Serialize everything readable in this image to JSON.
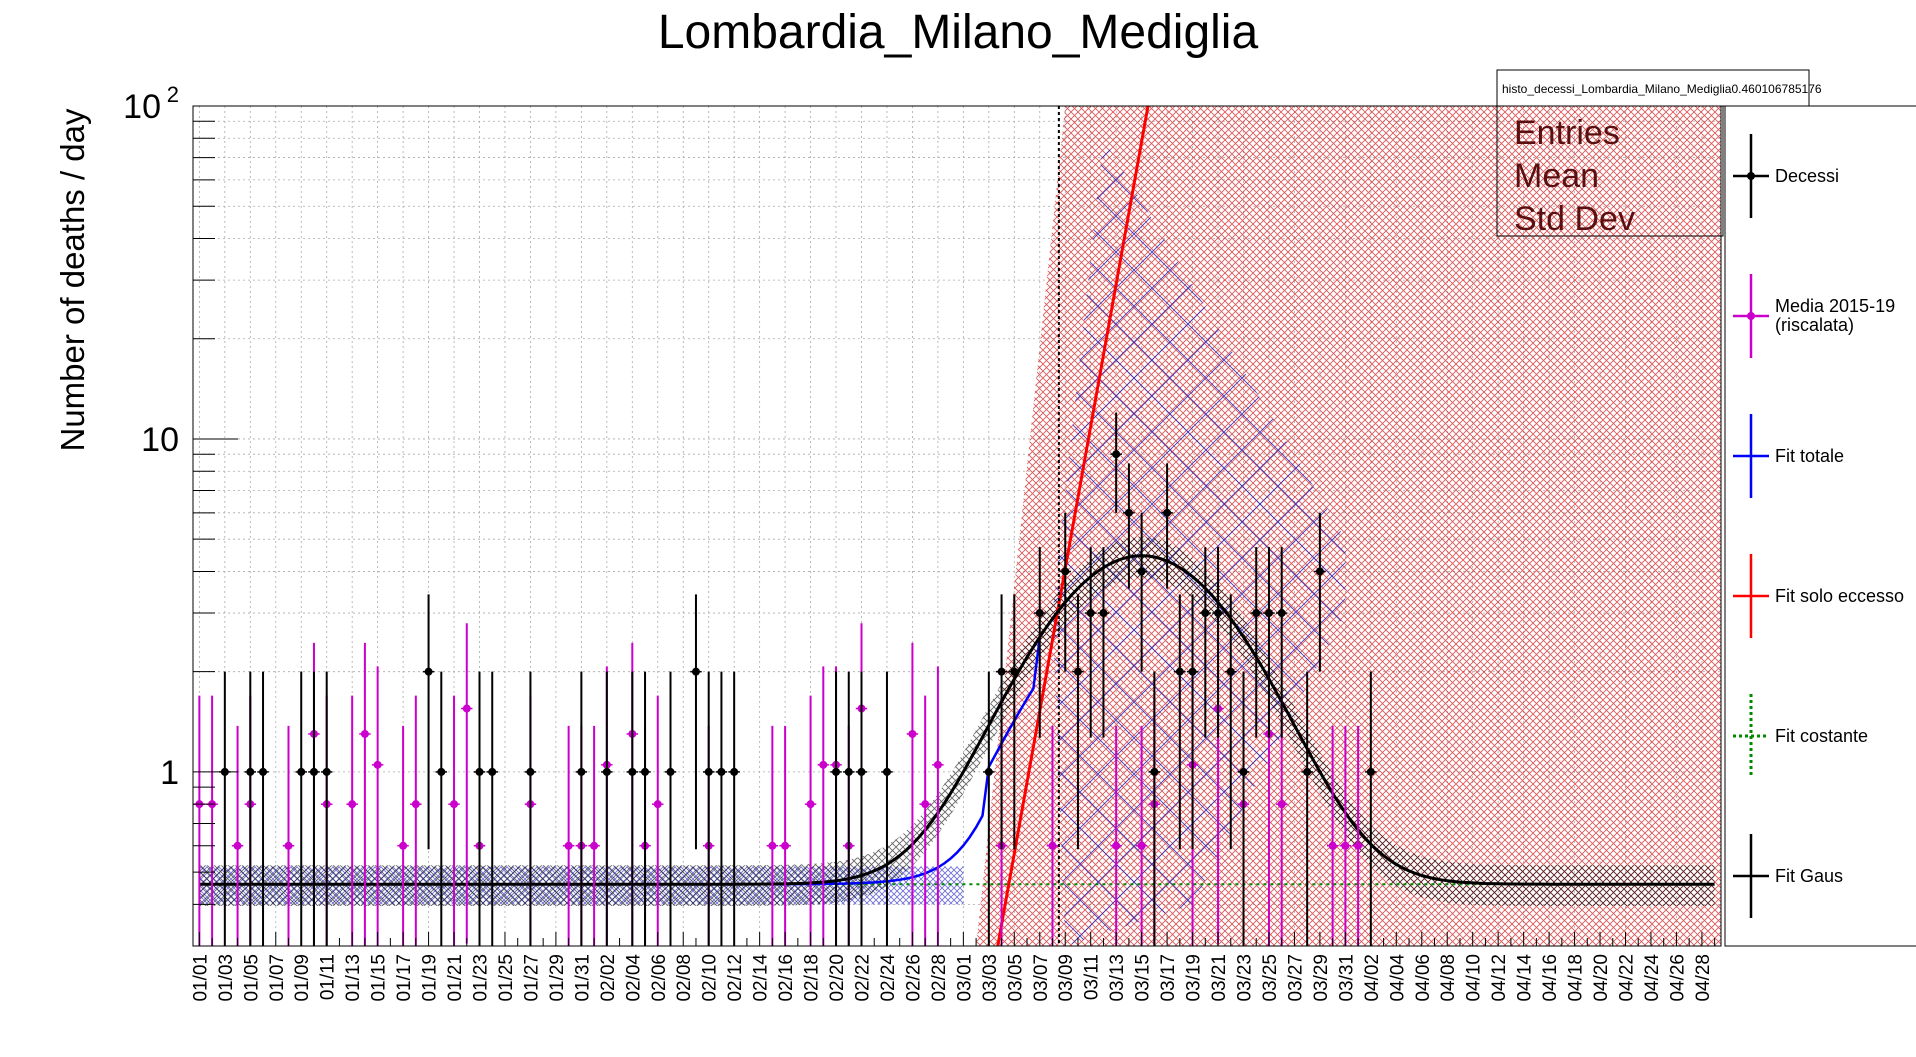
{
  "chart_data": {
    "type": "scatter",
    "title": "Lombardia_Milano_Mediglia",
    "ylabel": "Number of deaths / day",
    "y_scale": "log",
    "ylim": [
      0.3,
      100
    ],
    "y_ticks": [
      {
        "value": 1,
        "label": "1"
      },
      {
        "value": 10,
        "label": "10"
      },
      {
        "value": 100,
        "label": "10",
        "exp": "2"
      }
    ],
    "grid": true,
    "x_tick_labels": [
      "01/01",
      "01/03",
      "01/05",
      "01/07",
      "01/09",
      "01/11",
      "01/13",
      "01/15",
      "01/17",
      "01/19",
      "01/21",
      "01/23",
      "01/25",
      "01/27",
      "01/29",
      "01/31",
      "02/02",
      "02/04",
      "02/06",
      "02/08",
      "02/10",
      "02/12",
      "02/14",
      "02/16",
      "02/18",
      "02/20",
      "02/22",
      "02/24",
      "02/26",
      "02/28",
      "03/01",
      "03/03",
      "03/05",
      "03/07",
      "03/09",
      "03/11",
      "03/13",
      "03/15",
      "03/17",
      "03/19",
      "03/21",
      "03/23",
      "03/25",
      "03/27",
      "03/29",
      "03/31",
      "04/02",
      "04/04",
      "04/06",
      "04/08",
      "04/10",
      "04/12",
      "04/14",
      "04/16",
      "04/18",
      "04/20",
      "04/22",
      "04/24",
      "04/26",
      "04/28"
    ],
    "x_day_count": 120,
    "vertical_marker_date": "03/09",
    "stats_box": {
      "name": "histo_decessi_Lombardia_Milano_Mediglia0.460106785176",
      "rows": [
        "Entries",
        "Mean",
        "Std Dev"
      ]
    },
    "legend": [
      {
        "label": "Decessi",
        "color": "#000000",
        "style": "point"
      },
      {
        "label": "Media 2015-19 (riscalata)",
        "color": "#cc00cc",
        "style": "point"
      },
      {
        "label": "Fit totale",
        "color": "#0000ff",
        "style": "line"
      },
      {
        "label": "Fit solo eccesso",
        "color": "#ff0000",
        "style": "line"
      },
      {
        "label": "Fit costante",
        "color": "#008800",
        "style": "dashed"
      },
      {
        "label": "Fit Gaus",
        "color": "#000000",
        "style": "line"
      }
    ],
    "series": [
      {
        "name": "Decessi",
        "color": "#000000",
        "points": [
          [
            "01/03",
            1
          ],
          [
            "01/05",
            1
          ],
          [
            "01/06",
            1
          ],
          [
            "01/09",
            1
          ],
          [
            "01/10",
            1
          ],
          [
            "01/11",
            1
          ],
          [
            "01/19",
            2
          ],
          [
            "01/20",
            1
          ],
          [
            "01/23",
            1
          ],
          [
            "01/24",
            1
          ],
          [
            "01/27",
            1
          ],
          [
            "01/31",
            1
          ],
          [
            "02/02",
            1
          ],
          [
            "02/04",
            1
          ],
          [
            "02/05",
            1
          ],
          [
            "02/07",
            1
          ],
          [
            "02/09",
            2
          ],
          [
            "02/10",
            1
          ],
          [
            "02/11",
            1
          ],
          [
            "02/12",
            1
          ],
          [
            "02/20",
            1
          ],
          [
            "02/21",
            1
          ],
          [
            "02/22",
            1
          ],
          [
            "02/24",
            1
          ],
          [
            "03/03",
            1
          ],
          [
            "03/04",
            2
          ],
          [
            "03/05",
            2
          ],
          [
            "03/07",
            3
          ],
          [
            "03/09",
            4
          ],
          [
            "03/10",
            2
          ],
          [
            "03/11",
            3
          ],
          [
            "03/12",
            3
          ],
          [
            "03/13",
            9
          ],
          [
            "03/14",
            6
          ],
          [
            "03/15",
            4
          ],
          [
            "03/16",
            1
          ],
          [
            "03/17",
            6
          ],
          [
            "03/18",
            2
          ],
          [
            "03/19",
            2
          ],
          [
            "03/20",
            3
          ],
          [
            "03/21",
            3
          ],
          [
            "03/22",
            2
          ],
          [
            "03/23",
            1
          ],
          [
            "03/24",
            3
          ],
          [
            "03/25",
            3
          ],
          [
            "03/26",
            3
          ],
          [
            "03/28",
            1
          ],
          [
            "03/29",
            4
          ],
          [
            "04/02",
            1
          ]
        ]
      },
      {
        "name": "Media 2015-19 (riscalata)",
        "color": "#cc00cc",
        "points": [
          [
            "01/01",
            0.8
          ],
          [
            "01/02",
            0.8
          ],
          [
            "01/04",
            0.6
          ],
          [
            "01/05",
            0.8
          ],
          [
            "01/08",
            0.6
          ],
          [
            "01/10",
            1.3
          ],
          [
            "01/11",
            0.8
          ],
          [
            "01/13",
            0.8
          ],
          [
            "01/14",
            1.3
          ],
          [
            "01/15",
            1.05
          ],
          [
            "01/17",
            0.6
          ],
          [
            "01/18",
            0.8
          ],
          [
            "01/21",
            0.8
          ],
          [
            "01/22",
            1.55
          ],
          [
            "01/23",
            0.6
          ],
          [
            "01/27",
            0.8
          ],
          [
            "01/30",
            0.6
          ],
          [
            "01/31",
            0.6
          ],
          [
            "02/01",
            0.6
          ],
          [
            "02/02",
            1.05
          ],
          [
            "02/04",
            1.3
          ],
          [
            "02/05",
            0.6
          ],
          [
            "02/06",
            0.8
          ],
          [
            "02/10",
            0.6
          ],
          [
            "02/15",
            0.6
          ],
          [
            "02/16",
            0.6
          ],
          [
            "02/18",
            0.8
          ],
          [
            "02/19",
            1.05
          ],
          [
            "02/20",
            1.05
          ],
          [
            "02/21",
            0.6
          ],
          [
            "02/22",
            1.55
          ],
          [
            "02/26",
            1.3
          ],
          [
            "02/27",
            0.8
          ],
          [
            "02/28",
            1.05
          ],
          [
            "03/04",
            0.6
          ],
          [
            "03/08",
            0.6
          ],
          [
            "03/13",
            0.6
          ],
          [
            "03/15",
            0.6
          ],
          [
            "03/16",
            0.8
          ],
          [
            "03/19",
            1.05
          ],
          [
            "03/21",
            1.55
          ],
          [
            "03/23",
            0.8
          ],
          [
            "03/25",
            1.3
          ],
          [
            "03/26",
            0.8
          ],
          [
            "03/30",
            0.6
          ],
          [
            "03/31",
            0.6
          ],
          [
            "04/01",
            0.6
          ]
        ]
      }
    ]
  }
}
